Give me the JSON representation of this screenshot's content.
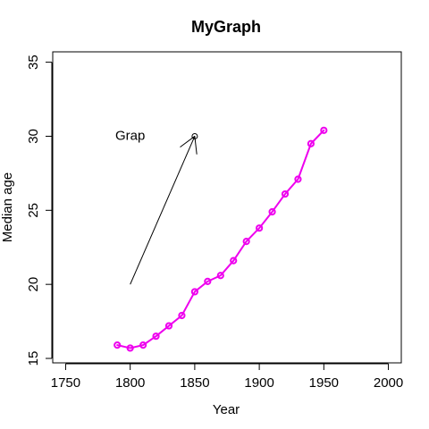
{
  "chart_data": {
    "type": "line",
    "title": "MyGraph",
    "xlabel": "Year",
    "ylabel": "Median age",
    "xlim": [
      1740,
      2010
    ],
    "ylim": [
      14.7,
      35.7
    ],
    "x_ticks": [
      1750,
      1800,
      1850,
      1900,
      1950,
      2000
    ],
    "y_ticks": [
      15,
      20,
      25,
      30,
      35
    ],
    "grid": false,
    "series": [
      {
        "color": "#ee00ee",
        "marker": "open-circle",
        "x": [
          1790,
          1800,
          1810,
          1820,
          1830,
          1840,
          1850,
          1860,
          1870,
          1880,
          1890,
          1900,
          1910,
          1920,
          1930,
          1940,
          1950
        ],
        "values": [
          15.9,
          15.7,
          15.9,
          16.5,
          17.2,
          17.9,
          19.5,
          20.2,
          20.6,
          21.6,
          22.9,
          23.8,
          24.9,
          26.1,
          27.1,
          29.5,
          30.4
        ]
      }
    ],
    "annotations": [
      {
        "type": "text",
        "text": "Grap",
        "x": 1800,
        "y": 30
      },
      {
        "type": "arrow",
        "from": [
          1800,
          20
        ],
        "to": [
          1850,
          30
        ],
        "color": "#000000"
      },
      {
        "type": "point",
        "marker": "open-circle",
        "x": 1850,
        "y": 30,
        "color": "#000000"
      }
    ]
  }
}
